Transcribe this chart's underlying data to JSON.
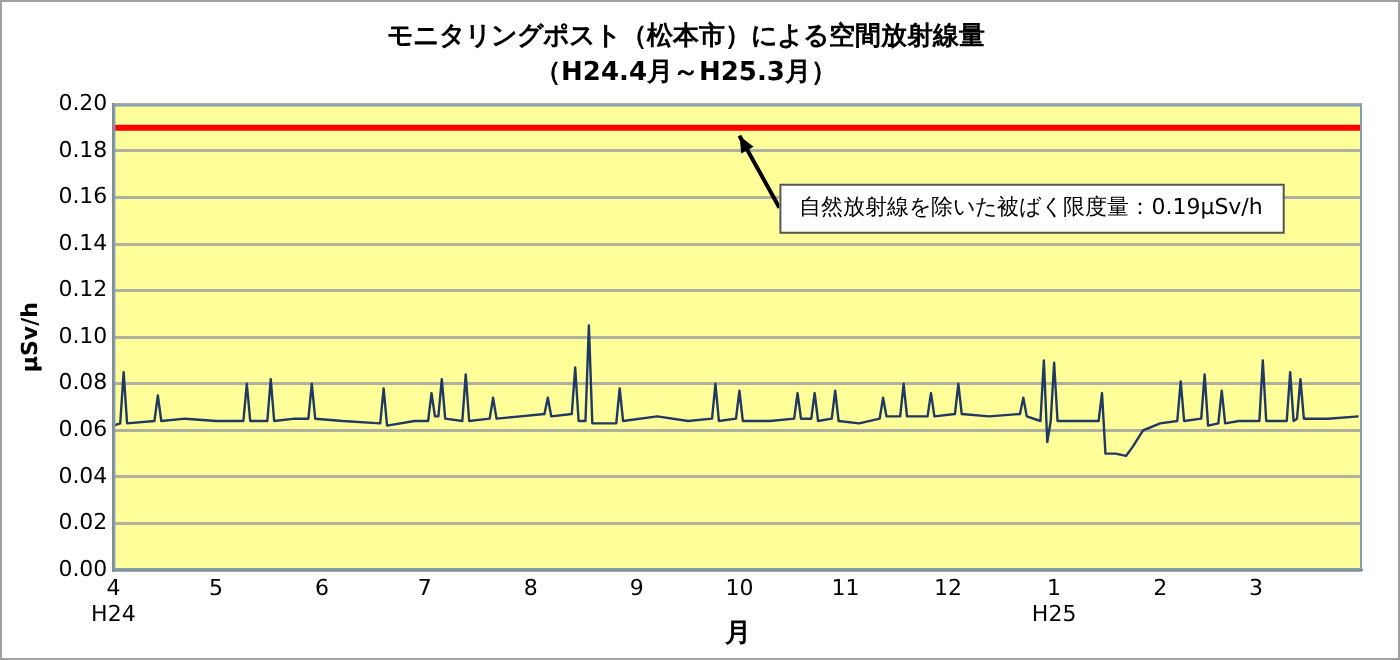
{
  "chart_data": {
    "type": "line",
    "title": "モニタリングポスト（松本市）による空間放射線量",
    "subtitle": "（H24.4月～H25.3月）",
    "xlabel": "月",
    "ylabel": "μSv/h",
    "xlim": [
      "2012-04-01",
      "2013-04-01"
    ],
    "xticks": [
      {
        "value": "2012-04-01",
        "label": "4\nH24"
      },
      {
        "value": "2012-05-01",
        "label": "5"
      },
      {
        "value": "2012-06-01",
        "label": "6"
      },
      {
        "value": "2012-07-01",
        "label": "7"
      },
      {
        "value": "2012-08-01",
        "label": "8"
      },
      {
        "value": "2012-09-01",
        "label": "9"
      },
      {
        "value": "2012-10-01",
        "label": "10"
      },
      {
        "value": "2012-11-01",
        "label": "11"
      },
      {
        "value": "2012-12-01",
        "label": "12"
      },
      {
        "value": "2013-01-01",
        "label": "1\nH25"
      },
      {
        "value": "2013-02-01",
        "label": "2"
      },
      {
        "value": "2013-03-01",
        "label": "3"
      }
    ],
    "ylim": [
      0,
      0.2
    ],
    "yticks": [
      {
        "value": 0,
        "label": "0.00"
      },
      {
        "value": 0.02,
        "label": "0.02"
      },
      {
        "value": 0.04,
        "label": "0.04"
      },
      {
        "value": 0.06,
        "label": "0.06"
      },
      {
        "value": 0.08,
        "label": "0.08"
      },
      {
        "value": 0.1,
        "label": "0.10"
      },
      {
        "value": 0.12,
        "label": "0.12"
      },
      {
        "value": 0.14,
        "label": "0.14"
      },
      {
        "value": 0.16,
        "label": "0.16"
      },
      {
        "value": 0.18,
        "label": "0.18"
      },
      {
        "value": 0.2,
        "label": "0.20"
      }
    ],
    "grid": "y",
    "legend": false,
    "marker": "none",
    "line_style": "solid",
    "ref_lines": [
      {
        "axis": "y",
        "value": 0.19,
        "color": "#ff0000"
      }
    ],
    "annotations": [
      {
        "text": "自然放射線を除いた被ばく限度量：0.19μSv/h",
        "x": "2012-10-01",
        "y": 0.19
      }
    ],
    "series": [
      {
        "color": "#1f3864",
        "x": [
          "2012-04-01",
          "2012-04-03",
          "2012-04-04",
          "2012-04-05",
          "2012-04-13",
          "2012-04-14",
          "2012-04-15",
          "2012-04-22",
          "2012-05-01",
          "2012-05-09",
          "2012-05-10",
          "2012-05-11",
          "2012-05-16",
          "2012-05-17",
          "2012-05-18",
          "2012-05-24",
          "2012-05-28",
          "2012-05-29",
          "2012-05-30",
          "2012-06-07",
          "2012-06-18",
          "2012-06-19",
          "2012-06-20",
          "2012-06-28",
          "2012-07-02",
          "2012-07-03",
          "2012-07-04",
          "2012-07-05",
          "2012-07-06",
          "2012-07-07",
          "2012-07-12",
          "2012-07-13",
          "2012-07-14",
          "2012-07-20",
          "2012-07-21",
          "2012-07-22",
          "2012-07-29",
          "2012-08-05",
          "2012-08-06",
          "2012-08-07",
          "2012-08-13",
          "2012-08-14",
          "2012-08-15",
          "2012-08-17",
          "2012-08-18",
          "2012-08-19",
          "2012-08-26",
          "2012-08-27",
          "2012-08-28",
          "2012-09-07",
          "2012-09-16",
          "2012-09-23",
          "2012-09-24",
          "2012-09-25",
          "2012-09-30",
          "2012-10-01",
          "2012-10-02",
          "2012-10-10",
          "2012-10-17",
          "2012-10-18",
          "2012-10-19",
          "2012-10-22",
          "2012-10-23",
          "2012-10-24",
          "2012-10-28",
          "2012-10-29",
          "2012-10-30",
          "2012-11-05",
          "2012-11-11",
          "2012-11-12",
          "2012-11-13",
          "2012-11-17",
          "2012-11-18",
          "2012-11-19",
          "2012-11-25",
          "2012-11-26",
          "2012-11-27",
          "2012-12-03",
          "2012-12-04",
          "2012-12-05",
          "2012-12-13",
          "2012-12-22",
          "2012-12-23",
          "2012-12-24",
          "2012-12-28",
          "2012-12-29",
          "2012-12-30",
          "2012-12-31",
          "2013-01-01",
          "2013-01-02",
          "2013-01-07",
          "2013-01-14",
          "2013-01-15",
          "2013-01-16",
          "2013-01-19",
          "2013-01-22",
          "2013-01-24",
          "2013-01-27",
          "2013-02-01",
          "2013-02-06",
          "2013-02-07",
          "2013-02-08",
          "2013-02-13",
          "2013-02-14",
          "2013-02-15",
          "2013-02-18",
          "2013-02-19",
          "2013-02-20",
          "2013-02-24",
          "2013-03-02",
          "2013-03-03",
          "2013-03-04",
          "2013-03-10",
          "2013-03-11",
          "2013-03-12",
          "2013-03-13",
          "2013-03-14",
          "2013-03-15",
          "2013-03-22",
          "2013-03-31"
        ],
        "values": [
          0.062,
          0.063,
          0.085,
          0.063,
          0.064,
          0.075,
          0.064,
          0.065,
          0.064,
          0.064,
          0.08,
          0.064,
          0.064,
          0.082,
          0.064,
          0.065,
          0.065,
          0.08,
          0.065,
          0.064,
          0.063,
          0.078,
          0.062,
          0.064,
          0.064,
          0.076,
          0.066,
          0.066,
          0.082,
          0.065,
          0.064,
          0.084,
          0.064,
          0.065,
          0.074,
          0.065,
          0.066,
          0.067,
          0.074,
          0.066,
          0.067,
          0.087,
          0.064,
          0.064,
          0.105,
          0.063,
          0.063,
          0.078,
          0.064,
          0.066,
          0.064,
          0.065,
          0.08,
          0.064,
          0.065,
          0.077,
          0.064,
          0.064,
          0.065,
          0.076,
          0.065,
          0.065,
          0.076,
          0.064,
          0.065,
          0.077,
          0.064,
          0.063,
          0.065,
          0.074,
          0.066,
          0.066,
          0.08,
          0.066,
          0.066,
          0.076,
          0.066,
          0.067,
          0.08,
          0.067,
          0.066,
          0.067,
          0.074,
          0.066,
          0.064,
          0.09,
          0.055,
          0.064,
          0.089,
          0.064,
          0.064,
          0.064,
          0.076,
          0.05,
          0.05,
          0.049,
          0.053,
          0.06,
          0.063,
          0.064,
          0.081,
          0.064,
          0.065,
          0.084,
          0.062,
          0.063,
          0.077,
          0.063,
          0.064,
          0.064,
          0.09,
          0.064,
          0.064,
          0.085,
          0.064,
          0.065,
          0.082,
          0.065,
          0.065,
          0.066
        ]
      }
    ]
  }
}
